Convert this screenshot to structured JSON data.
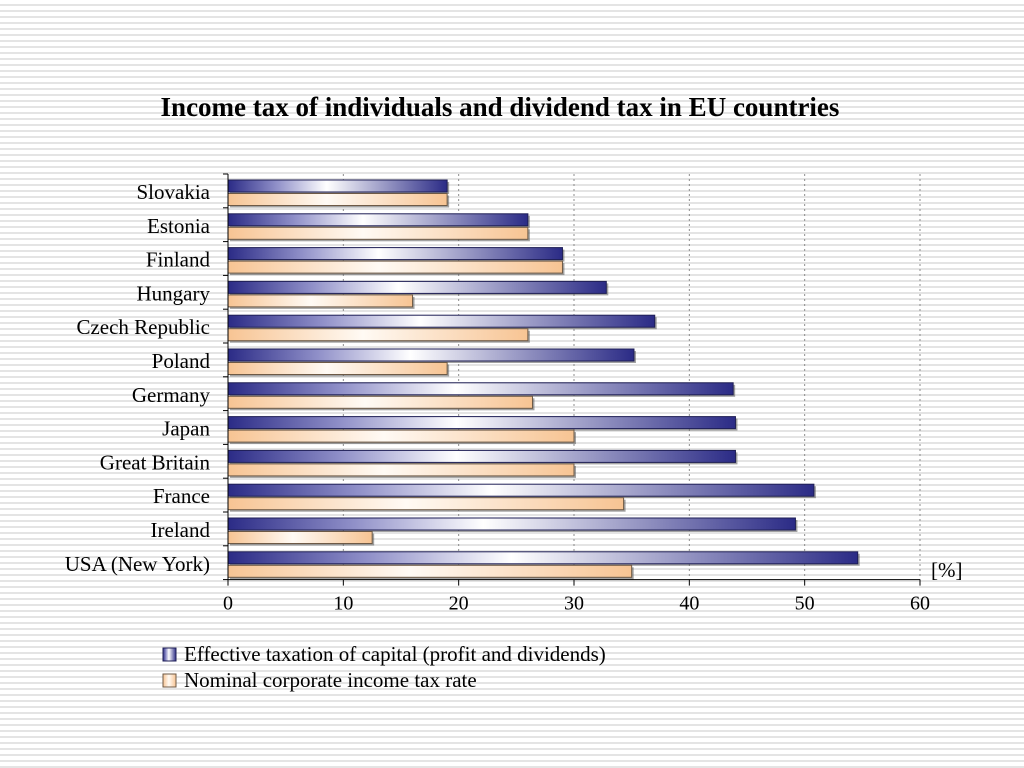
{
  "chart_data": {
    "type": "bar",
    "orientation": "horizontal",
    "title": "Income tax of individuals and dividend tax in EU countries",
    "unit_label": "[%]",
    "categories": [
      "Slovakia",
      "Estonia",
      "Finland",
      "Hungary",
      "Czech Republic",
      "Poland",
      "Germany",
      "Japan",
      "Great Britain",
      "France",
      "Ireland",
      "USA (New York)"
    ],
    "series": [
      {
        "name": "Effective taxation of capital (profit and dividends)",
        "color": "#2e2e8c",
        "values": [
          19,
          26,
          29,
          32.8,
          37,
          35.2,
          43.8,
          44,
          44,
          50.8,
          49.2,
          54.6
        ]
      },
      {
        "name": "Nominal corporate income tax rate",
        "color": "#f9c99a",
        "values": [
          19,
          26,
          29,
          16,
          26,
          19,
          26.4,
          30,
          30,
          34.3,
          12.5,
          35
        ]
      }
    ],
    "xlim": [
      0,
      60
    ],
    "xticks": [
      0,
      10,
      20,
      30,
      40,
      50,
      60
    ],
    "grid": "vertical dotted",
    "legend_position": "bottom"
  }
}
